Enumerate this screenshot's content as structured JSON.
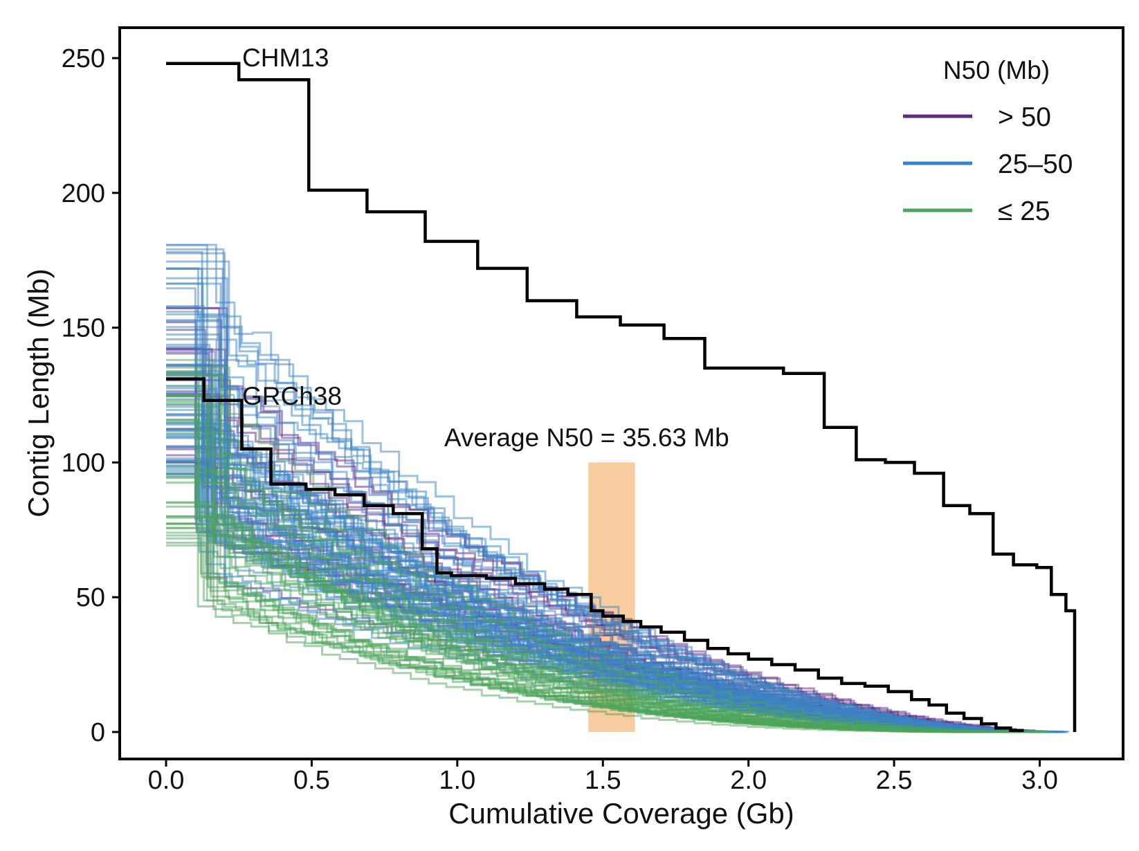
{
  "chart_data": {
    "type": "line",
    "title": "",
    "xlabel": "Cumulative Coverage (Gb)",
    "ylabel": "Contig Length (Mb)",
    "xlim": [
      -0.16,
      3.28
    ],
    "ylim": [
      -10,
      260
    ],
    "xticks": [
      "0.0",
      "0.5",
      "1.0",
      "1.5",
      "2.0",
      "2.5",
      "3.0"
    ],
    "yticks": [
      "0",
      "50",
      "100",
      "150",
      "200",
      "250"
    ],
    "grid": false,
    "legend": {
      "title": "N50 (Mb)",
      "position": "top-right",
      "entries": [
        {
          "label": "> 50",
          "color": "#5b2a86"
        },
        {
          "label": "25–50",
          "color": "#3b84c4"
        },
        {
          "label": "≤ 25",
          "color": "#4ca35a"
        }
      ]
    },
    "highlight": {
      "x_range": [
        1.45,
        1.61
      ],
      "y_range": [
        0,
        100
      ],
      "color": "#f8c796",
      "label": "Average N50 = 35.63 Mb"
    },
    "labels": {
      "chm13": "CHM13",
      "grch38": "GRCh38"
    },
    "reference_series": [
      {
        "name": "CHM13",
        "color": "#000000",
        "x": [
          0.0,
          0.25,
          0.49,
          0.69,
          0.89,
          1.07,
          1.24,
          1.41,
          1.56,
          1.71,
          1.85,
          1.99,
          2.12,
          2.26,
          2.37,
          2.47,
          2.57,
          2.67,
          2.76,
          2.84,
          2.91,
          2.99,
          3.04,
          3.09,
          3.12
        ],
        "y": [
          248,
          242,
          201,
          193,
          182,
          172,
          160,
          154,
          151,
          146,
          135,
          135,
          133,
          113,
          101,
          100,
          96,
          84,
          81,
          66,
          62,
          61,
          51,
          45,
          0
        ]
      },
      {
        "name": "GRCh38",
        "color": "#000000",
        "x": [
          0.0,
          0.13,
          0.26,
          0.36,
          0.48,
          0.58,
          0.68,
          0.78,
          0.88,
          0.93,
          0.98,
          1.1,
          1.2,
          1.3,
          1.38,
          1.46,
          1.5,
          1.57,
          1.63,
          1.7,
          1.78,
          1.86,
          1.93,
          2.0,
          2.08,
          2.16,
          2.24,
          2.32,
          2.4,
          2.48,
          2.56,
          2.62,
          2.68,
          2.74,
          2.8,
          2.85,
          2.9,
          2.94
        ],
        "y": [
          131,
          123,
          105,
          92,
          90,
          88,
          84,
          81,
          68,
          59,
          58,
          57,
          55,
          53,
          51,
          45,
          43,
          41,
          39,
          37,
          34,
          31,
          29,
          27,
          25,
          23,
          20,
          18,
          17,
          15,
          12,
          10,
          7,
          5,
          3,
          1.5,
          0.6,
          0
        ]
      }
    ],
    "ensemble": {
      "description_groups": [
        {
          "group": "> 50",
          "color": "#5b2a86",
          "count": 22,
          "start_y_range": [
            100,
            160
          ],
          "end_x_range": [
            2.9,
            3.05
          ]
        },
        {
          "group": "25–50",
          "color": "#3b84c4",
          "count": 70,
          "start_y_range": [
            95,
            181
          ],
          "end_x_range": [
            2.9,
            3.1
          ]
        },
        {
          "group": "≤ 25",
          "color": "#4ca35a",
          "count": 36,
          "start_y_range": [
            69,
            140
          ],
          "end_x_range": [
            2.85,
            3.05
          ]
        }
      ]
    }
  }
}
